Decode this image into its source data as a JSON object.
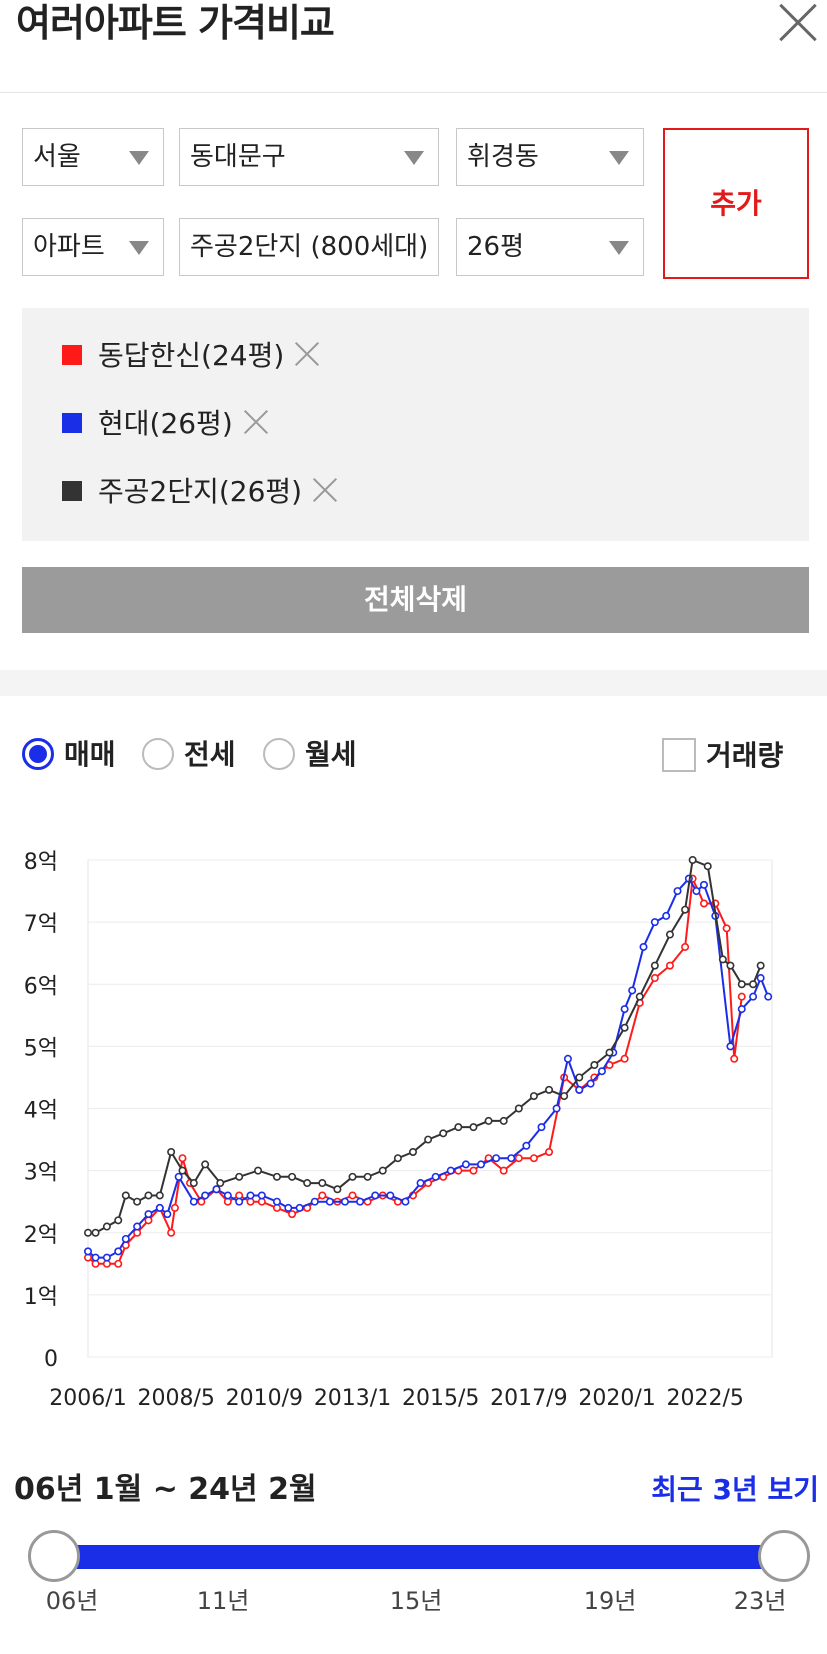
{
  "header": {
    "title": "여러아파트 가격비교",
    "close_icon": "close-icon"
  },
  "filters": {
    "region": "서울",
    "district": "동대문구",
    "dong": "휘경동",
    "type": "아파트",
    "complex": "주공2단지 (800세대)",
    "size": "26평",
    "add_label": "추가"
  },
  "selected": {
    "items": [
      {
        "label": "동답한신(24평)",
        "color": "#ff1a1a"
      },
      {
        "label": "현대(26평)",
        "color": "#1a2ee8"
      },
      {
        "label": "주공2단지(26평)",
        "color": "#333333"
      }
    ],
    "delete_all_label": "전체삭제"
  },
  "options": {
    "radios": [
      {
        "label": "매매",
        "checked": true
      },
      {
        "label": "전세",
        "checked": false
      },
      {
        "label": "월세",
        "checked": false
      }
    ],
    "volume_label": "거래량",
    "volume_checked": false
  },
  "chart_data": {
    "type": "line",
    "ylim": [
      0,
      8
    ],
    "y_tick_labels": [
      "0",
      "1억",
      "2억",
      "3억",
      "4억",
      "5억",
      "6억",
      "7억",
      "8억"
    ],
    "x_range": [
      2006.0,
      2024.1
    ],
    "x_tick_labels": [
      "2006/1",
      "2008/5",
      "2010/9",
      "2013/1",
      "2015/5",
      "2017/9",
      "2020/1",
      "2022/5"
    ],
    "grid": true,
    "series": [
      {
        "name": "동답한신(24평)",
        "color": "#ff1a1a",
        "x": [
          2006.0,
          2006.2,
          2006.5,
          2006.8,
          2007.0,
          2007.3,
          2007.6,
          2007.9,
          2008.2,
          2008.3,
          2008.5,
          2008.7,
          2009.0,
          2009.4,
          2009.7,
          2010.0,
          2010.3,
          2010.6,
          2011.0,
          2011.4,
          2011.8,
          2012.2,
          2012.6,
          2013.0,
          2013.4,
          2013.8,
          2014.2,
          2014.6,
          2015.0,
          2015.4,
          2015.8,
          2016.2,
          2016.6,
          2017.0,
          2017.4,
          2017.8,
          2018.2,
          2018.6,
          2019.0,
          2019.4,
          2019.8,
          2020.2,
          2020.6,
          2021.0,
          2021.4,
          2021.8,
          2022.0,
          2022.3,
          2022.6,
          2022.9,
          2023.1,
          2023.3
        ],
        "y": [
          1.6,
          1.5,
          1.5,
          1.5,
          1.8,
          2.0,
          2.2,
          2.4,
          2.0,
          2.4,
          3.2,
          2.8,
          2.5,
          2.7,
          2.5,
          2.6,
          2.5,
          2.5,
          2.4,
          2.3,
          2.4,
          2.6,
          2.5,
          2.6,
          2.5,
          2.6,
          2.5,
          2.6,
          2.8,
          2.9,
          3.0,
          3.0,
          3.2,
          3.0,
          3.2,
          3.2,
          3.3,
          4.5,
          4.3,
          4.5,
          4.7,
          4.8,
          5.7,
          6.1,
          6.3,
          6.6,
          7.7,
          7.3,
          7.3,
          6.9,
          4.8,
          5.8
        ]
      },
      {
        "name": "현대(26평)",
        "color": "#1a2ee8",
        "x": [
          2006.0,
          2006.2,
          2006.5,
          2006.8,
          2007.0,
          2007.3,
          2007.6,
          2007.9,
          2008.1,
          2008.4,
          2008.8,
          2009.1,
          2009.4,
          2009.7,
          2010.0,
          2010.3,
          2010.6,
          2011.0,
          2011.3,
          2011.6,
          2012.0,
          2012.4,
          2012.8,
          2013.2,
          2013.6,
          2014.0,
          2014.4,
          2014.8,
          2015.2,
          2015.6,
          2016.0,
          2016.4,
          2016.8,
          2017.2,
          2017.6,
          2018.0,
          2018.4,
          2018.7,
          2019.0,
          2019.3,
          2019.6,
          2019.9,
          2020.2,
          2020.4,
          2020.7,
          2021.0,
          2021.3,
          2021.6,
          2021.9,
          2022.1,
          2022.3,
          2022.6,
          2023.0,
          2023.3,
          2023.6,
          2023.8,
          2024.0
        ],
        "y": [
          1.7,
          1.6,
          1.6,
          1.7,
          1.9,
          2.1,
          2.3,
          2.4,
          2.3,
          2.9,
          2.5,
          2.6,
          2.7,
          2.6,
          2.5,
          2.6,
          2.6,
          2.5,
          2.4,
          2.4,
          2.5,
          2.5,
          2.5,
          2.5,
          2.6,
          2.6,
          2.5,
          2.8,
          2.9,
          3.0,
          3.1,
          3.1,
          3.2,
          3.2,
          3.4,
          3.7,
          4.0,
          4.8,
          4.3,
          4.4,
          4.6,
          4.9,
          5.6,
          5.9,
          6.6,
          7.0,
          7.1,
          7.5,
          7.7,
          7.5,
          7.6,
          7.1,
          5.0,
          5.6,
          5.8,
          6.1,
          5.8
        ]
      },
      {
        "name": "주공2단지(26평)",
        "color": "#333333",
        "x": [
          2006.0,
          2006.2,
          2006.5,
          2006.8,
          2007.0,
          2007.3,
          2007.6,
          2007.9,
          2008.2,
          2008.5,
          2008.8,
          2009.1,
          2009.5,
          2010.0,
          2010.5,
          2011.0,
          2011.4,
          2011.8,
          2012.2,
          2012.6,
          2013.0,
          2013.4,
          2013.8,
          2014.2,
          2014.6,
          2015.0,
          2015.4,
          2015.8,
          2016.2,
          2016.6,
          2017.0,
          2017.4,
          2017.8,
          2018.2,
          2018.6,
          2019.0,
          2019.4,
          2019.8,
          2020.2,
          2020.6,
          2021.0,
          2021.4,
          2021.8,
          2022.0,
          2022.4,
          2022.8,
          2023.0,
          2023.3,
          2023.6,
          2023.8
        ],
        "y": [
          2.0,
          2.0,
          2.1,
          2.2,
          2.6,
          2.5,
          2.6,
          2.6,
          3.3,
          3.0,
          2.8,
          3.1,
          2.8,
          2.9,
          3.0,
          2.9,
          2.9,
          2.8,
          2.8,
          2.7,
          2.9,
          2.9,
          3.0,
          3.2,
          3.3,
          3.5,
          3.6,
          3.7,
          3.7,
          3.8,
          3.8,
          4.0,
          4.2,
          4.3,
          4.2,
          4.5,
          4.7,
          4.9,
          5.3,
          5.8,
          6.3,
          6.8,
          7.2,
          8.0,
          7.9,
          6.4,
          6.3,
          6.0,
          6.0,
          6.3
        ]
      }
    ]
  },
  "range": {
    "label": "06년 1월 ~ 24년 2월",
    "recent_label": "최근 3년 보기",
    "ticks": [
      "06년",
      "11년",
      "15년",
      "19년",
      "23년"
    ],
    "start_fraction": 0.0,
    "end_fraction": 1.0
  }
}
